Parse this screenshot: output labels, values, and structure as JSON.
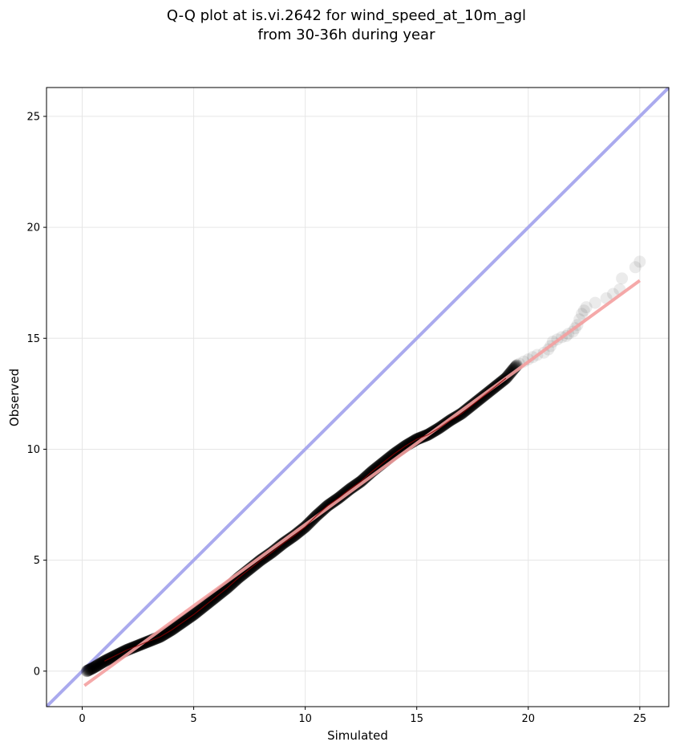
{
  "chart_data": {
    "type": "scatter",
    "title_line1": "Q-Q plot at is.vi.2642 for wind_speed_at_10m_agl",
    "title_line2": "from 30-36h during year",
    "xlabel": "Simulated",
    "ylabel": "Observed",
    "xlim": [
      -1.6,
      26.3
    ],
    "ylim": [
      -1.6,
      26.3
    ],
    "xticks": [
      0,
      5,
      10,
      15,
      20,
      25
    ],
    "yticks": [
      0,
      5,
      10,
      15,
      20,
      25
    ],
    "grid": true,
    "identity_line": {
      "color": "#aaaaee",
      "from": [
        -1.6,
        -1.6
      ],
      "to": [
        26.3,
        26.3
      ]
    },
    "fit_line": {
      "color": "#f5a0a0",
      "from": [
        0.1,
        -0.65
      ],
      "to": [
        25.0,
        17.6
      ]
    },
    "quantile_curve": [
      [
        0.2,
        0.0
      ],
      [
        0.5,
        0.15
      ],
      [
        1.0,
        0.45
      ],
      [
        1.5,
        0.7
      ],
      [
        2.0,
        0.95
      ],
      [
        2.5,
        1.15
      ],
      [
        3.0,
        1.35
      ],
      [
        3.5,
        1.55
      ],
      [
        4.0,
        1.85
      ],
      [
        4.5,
        2.2
      ],
      [
        5.0,
        2.55
      ],
      [
        5.5,
        2.95
      ],
      [
        6.0,
        3.35
      ],
      [
        6.5,
        3.75
      ],
      [
        7.0,
        4.2
      ],
      [
        7.5,
        4.6
      ],
      [
        8.0,
        5.0
      ],
      [
        8.5,
        5.35
      ],
      [
        9.0,
        5.75
      ],
      [
        9.5,
        6.1
      ],
      [
        10.0,
        6.5
      ],
      [
        10.5,
        7.0
      ],
      [
        11.0,
        7.45
      ],
      [
        11.5,
        7.8
      ],
      [
        12.0,
        8.2
      ],
      [
        12.5,
        8.55
      ],
      [
        13.0,
        9.0
      ],
      [
        13.5,
        9.4
      ],
      [
        14.0,
        9.8
      ],
      [
        14.5,
        10.15
      ],
      [
        15.0,
        10.45
      ],
      [
        15.5,
        10.65
      ],
      [
        16.0,
        10.95
      ],
      [
        16.5,
        11.3
      ],
      [
        17.0,
        11.6
      ],
      [
        17.5,
        12.0
      ],
      [
        18.0,
        12.4
      ],
      [
        18.5,
        12.8
      ],
      [
        19.0,
        13.2
      ],
      [
        19.5,
        13.8
      ]
    ],
    "tail_points": [
      [
        19.6,
        13.85
      ],
      [
        19.8,
        13.95
      ],
      [
        20.0,
        14.05
      ],
      [
        20.2,
        14.15
      ],
      [
        20.4,
        14.25
      ],
      [
        20.7,
        14.35
      ],
      [
        20.9,
        14.5
      ],
      [
        21.0,
        14.65
      ],
      [
        21.1,
        14.85
      ],
      [
        21.3,
        14.95
      ],
      [
        21.5,
        15.05
      ],
      [
        21.7,
        15.1
      ],
      [
        21.8,
        15.2
      ],
      [
        22.0,
        15.3
      ],
      [
        22.1,
        15.45
      ],
      [
        22.2,
        15.6
      ],
      [
        22.3,
        15.85
      ],
      [
        22.4,
        16.1
      ],
      [
        22.5,
        16.25
      ],
      [
        22.6,
        16.4
      ],
      [
        23.0,
        16.6
      ],
      [
        23.5,
        16.8
      ],
      [
        23.8,
        17.0
      ],
      [
        24.1,
        17.2
      ],
      [
        24.2,
        17.7
      ],
      [
        24.8,
        18.2
      ],
      [
        25.0,
        18.45
      ]
    ]
  }
}
